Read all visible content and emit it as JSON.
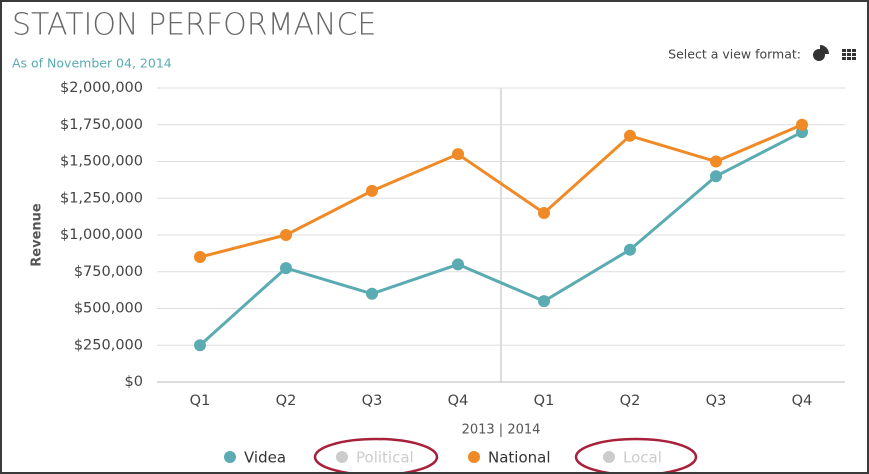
{
  "header": {
    "title": "STATION PERFORMANCE",
    "subtitle": "As of November 04, 2014",
    "view_format_label": "Select a view format:"
  },
  "chart_data": {
    "type": "line",
    "categories": [
      "Q1",
      "Q2",
      "Q3",
      "Q4",
      "Q1",
      "Q2",
      "Q3",
      "Q4"
    ],
    "x_group_label": "2013 | 2014",
    "y_label": "Revenue",
    "ylim": [
      0,
      2000000
    ],
    "yticks": [
      {
        "value": 0,
        "label": "$0"
      },
      {
        "value": 250000,
        "label": "$250,000"
      },
      {
        "value": 500000,
        "label": "$500,000"
      },
      {
        "value": 750000,
        "label": "$750,000"
      },
      {
        "value": 1000000,
        "label": "$1,000,000"
      },
      {
        "value": 1250000,
        "label": "$1,250,000"
      },
      {
        "value": 1500000,
        "label": "$1,500,000"
      },
      {
        "value": 1750000,
        "label": "$1,750,000"
      },
      {
        "value": 2000000,
        "label": "$2,000,000"
      }
    ],
    "grid": true,
    "series": [
      {
        "name": "Videa",
        "color": "#5aabb2",
        "visible": true,
        "values": [
          250000,
          775000,
          600000,
          800000,
          550000,
          900000,
          1400000,
          1700000
        ]
      },
      {
        "name": "Political",
        "color": "#cccccc",
        "visible": false,
        "values": [
          null,
          null,
          null,
          null,
          null,
          null,
          null,
          null
        ]
      },
      {
        "name": "National",
        "color": "#ef8a27",
        "visible": true,
        "values": [
          850000,
          1000000,
          1300000,
          1550000,
          1150000,
          1675000,
          1500000,
          1750000
        ]
      },
      {
        "name": "Local",
        "color": "#cccccc",
        "visible": false,
        "values": [
          null,
          null,
          null,
          null,
          null,
          null,
          null,
          null
        ]
      }
    ]
  }
}
